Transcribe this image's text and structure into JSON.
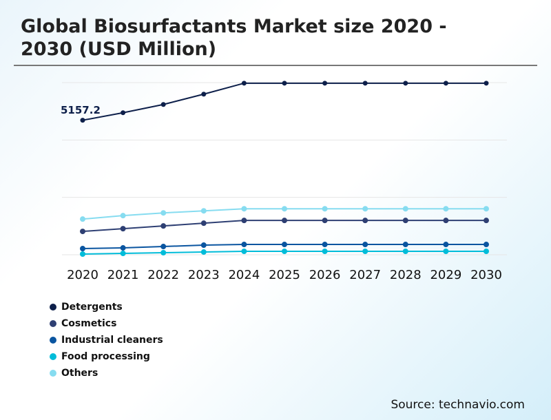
{
  "title": "Global Biosurfactants Market size 2020 - 2030 (USD Million)",
  "source": "Source: technavio.com",
  "chart_data": {
    "type": "line",
    "title": "Global Biosurfactants Market size 2020 - 2030 (USD Million)",
    "x": [
      "2020",
      "2021",
      "2022",
      "2023",
      "2024",
      "2025",
      "2026",
      "2027",
      "2028",
      "2029",
      "2030"
    ],
    "ylim": [
      0,
      6600
    ],
    "grid": true,
    "y_axis_labels_shown": false,
    "legend_position": "bottom-left",
    "annotation": "5157.2",
    "series": [
      {
        "name": "Detergents",
        "color": "#0d1f4a",
        "values": [
          5157.2,
          5446,
          5762,
          6157,
          6578,
          6578,
          6578,
          6578,
          6578,
          6578,
          6578
        ]
      },
      {
        "name": "Cosmetics",
        "color": "#2e3f73",
        "values": [
          895,
          1000,
          1105,
          1210,
          1316,
          1316,
          1316,
          1316,
          1316,
          1316,
          1316
        ]
      },
      {
        "name": "Industrial cleaners",
        "color": "#0a55a0",
        "values": [
          237,
          263,
          316,
          368,
          395,
          395,
          395,
          395,
          395,
          395,
          395
        ]
      },
      {
        "name": "Food processing",
        "color": "#00bcd9",
        "values": [
          26,
          53,
          79,
          105,
          132,
          132,
          132,
          132,
          132,
          132,
          132
        ]
      },
      {
        "name": "Others",
        "color": "#86dcf0",
        "values": [
          1368,
          1500,
          1605,
          1684,
          1763,
          1763,
          1763,
          1763,
          1763,
          1763,
          1763
        ]
      }
    ]
  }
}
